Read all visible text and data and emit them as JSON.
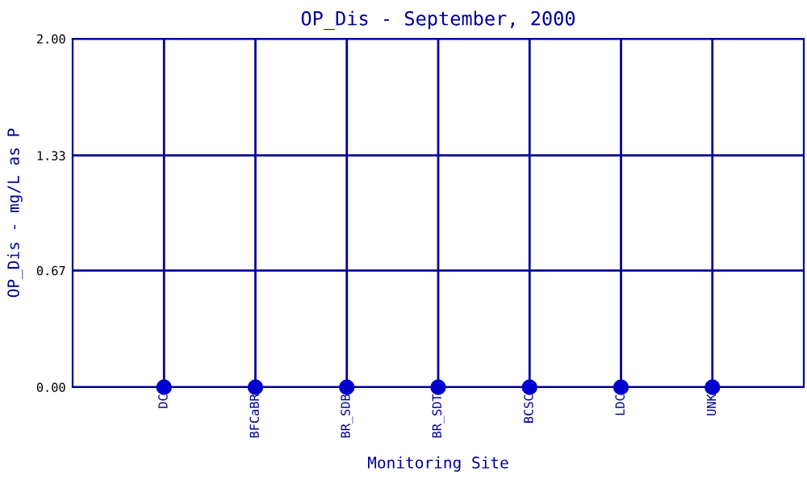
{
  "chart_data": {
    "type": "scatter",
    "title": "OP_Dis - September, 2000",
    "xlabel": "Monitoring Site",
    "ylabel": "OP_Dis - mg/L as P",
    "categories": [
      "DC",
      "BFCaBR",
      "BR_SDB",
      "BR_SDT",
      "BCSC",
      "LDC",
      "UNK"
    ],
    "series": [
      {
        "color": "#0000cc",
        "values": [
          0,
          0,
          0,
          0,
          0,
          0,
          0
        ]
      }
    ],
    "ylim": [
      0,
      2
    ],
    "yticks": [
      {
        "value": 0,
        "label": "0.00"
      },
      {
        "value": 0.67,
        "label": "0.67"
      },
      {
        "value": 1.33,
        "label": "1.33"
      },
      {
        "value": 2,
        "label": "2.00"
      }
    ],
    "grid": true,
    "marker": "circle",
    "legend": false
  }
}
